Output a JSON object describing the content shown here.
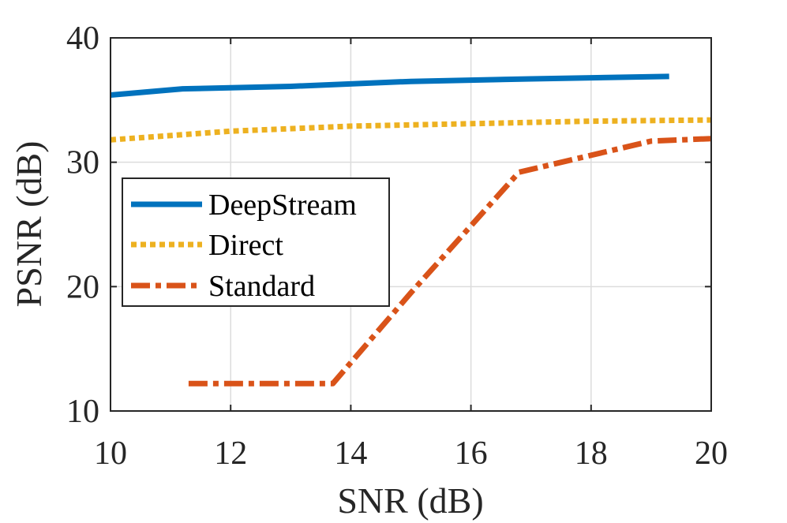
{
  "chart_data": {
    "type": "line",
    "title": "",
    "xlabel": "SNR (dB)",
    "ylabel": "PSNR (dB)",
    "xlim": [
      10,
      20
    ],
    "ylim": [
      10,
      40
    ],
    "xticks": [
      10,
      12,
      14,
      16,
      18,
      20
    ],
    "yticks": [
      10,
      20,
      30,
      40
    ],
    "xtick_labels": [
      "10",
      "12",
      "14",
      "16",
      "18",
      "20"
    ],
    "ytick_labels": [
      "10",
      "20",
      "30",
      "40"
    ],
    "grid": true,
    "legend_position": "center-left",
    "series": [
      {
        "name": "DeepStream",
        "style": "solid",
        "color": "#0072BD",
        "x": [
          10,
          11.2,
          13,
          15,
          17,
          19.3
        ],
        "y": [
          35.4,
          35.9,
          36.1,
          36.5,
          36.7,
          36.9
        ]
      },
      {
        "name": "Direct",
        "style": "dotted",
        "color": "#EDB120",
        "x": [
          10,
          12,
          14,
          16,
          18,
          20
        ],
        "y": [
          31.8,
          32.5,
          32.9,
          33.1,
          33.3,
          33.4
        ]
      },
      {
        "name": "Standard",
        "style": "dash-dot",
        "color": "#D95319",
        "x": [
          11.3,
          13.7,
          15,
          16.8,
          19,
          20
        ],
        "y": [
          12.2,
          12.2,
          19.5,
          29.2,
          31.7,
          31.9
        ]
      }
    ]
  }
}
